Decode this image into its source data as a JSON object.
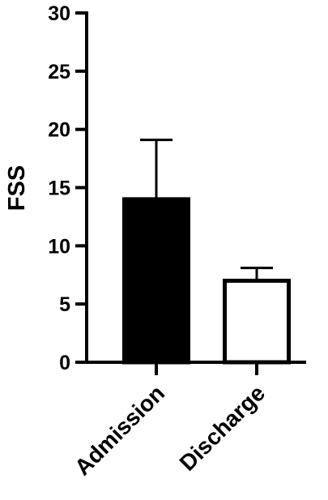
{
  "chart_data": {
    "type": "bar",
    "title": "",
    "xlabel": "",
    "ylabel": "FSS",
    "ylim": [
      0,
      30
    ],
    "yticks": [
      0,
      5,
      10,
      15,
      20,
      25,
      30
    ],
    "categories": [
      "Admission",
      "Discharge"
    ],
    "values": [
      14,
      7
    ],
    "error_upper": [
      19.1,
      8.1
    ],
    "bar_fill": [
      "#000000",
      "#ffffff"
    ],
    "bar_stroke": "#000000",
    "grid": false,
    "legend": "none"
  }
}
